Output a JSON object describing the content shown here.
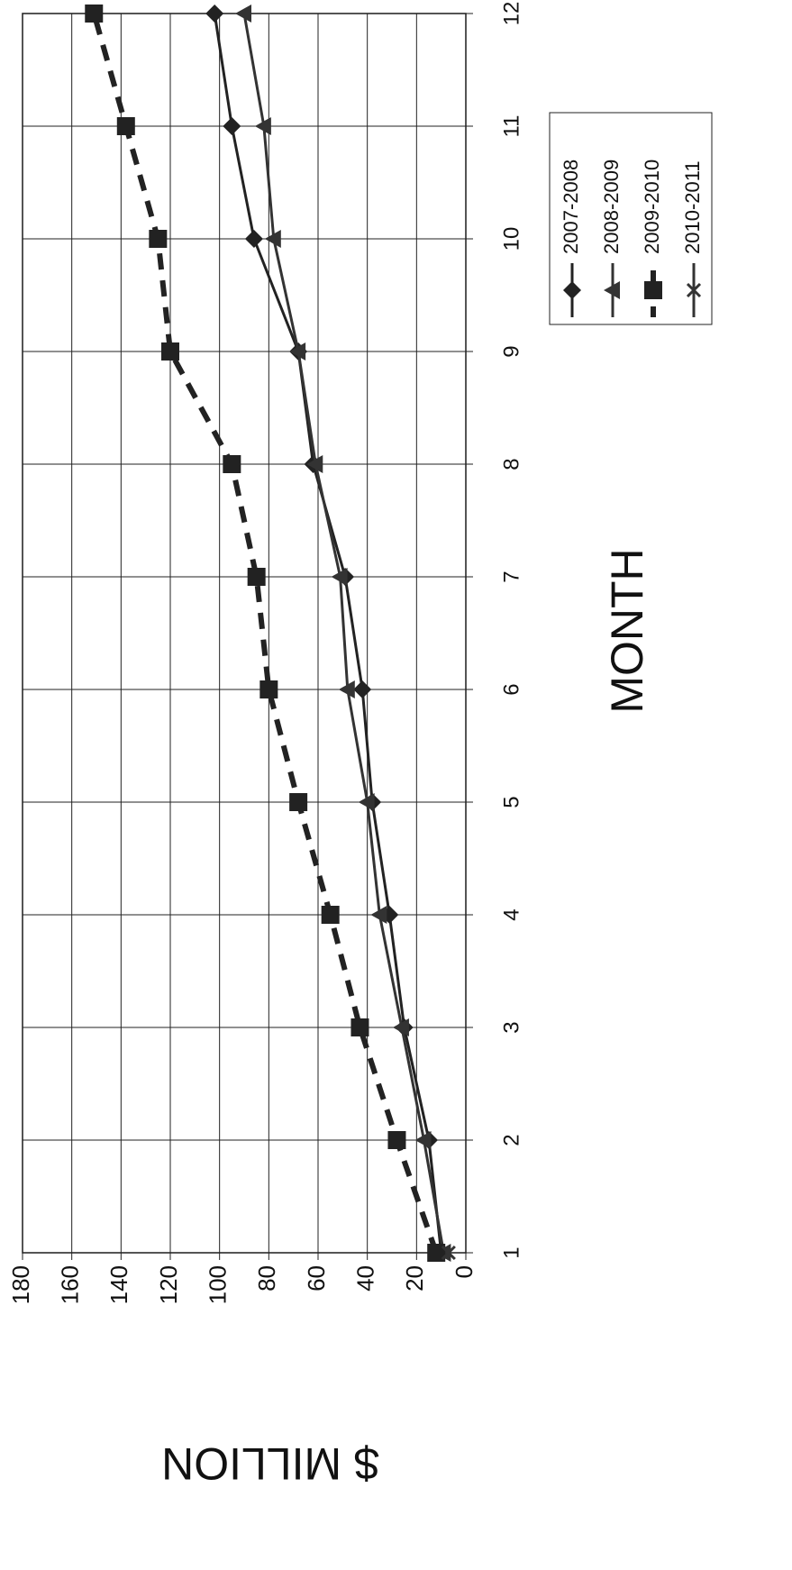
{
  "chart_data": {
    "type": "line",
    "x_label": "MONTH",
    "y_label": "$ MILLION",
    "x": [
      1,
      2,
      3,
      4,
      5,
      6,
      7,
      8,
      9,
      10,
      11,
      12
    ],
    "xlim": [
      1,
      12
    ],
    "xticks": [
      1,
      2,
      3,
      4,
      5,
      6,
      7,
      8,
      9,
      10,
      11,
      12
    ],
    "ylim": [
      0,
      180
    ],
    "yticks": [
      0,
      20,
      40,
      60,
      80,
      100,
      120,
      140,
      160,
      180
    ],
    "grid": true,
    "series": [
      {
        "name": "2007-2008",
        "color": "#222222",
        "marker": "diamond",
        "dashed": false,
        "values": [
          10,
          15,
          25,
          31,
          38,
          42,
          49,
          62,
          68,
          86,
          95,
          102
        ]
      },
      {
        "name": "2008-2009",
        "color": "#333333",
        "marker": "triangle",
        "dashed": false,
        "values": [
          9,
          17,
          26,
          35,
          40,
          48,
          51,
          61,
          68,
          78,
          82,
          90
        ]
      },
      {
        "name": "2009-2010",
        "color": "#222222",
        "marker": "square",
        "dashed": true,
        "values": [
          12,
          28,
          43,
          55,
          68,
          80,
          85,
          95,
          120,
          125,
          138,
          151
        ]
      },
      {
        "name": "2010-2011",
        "color": "#333333",
        "marker": "x",
        "dashed": false,
        "values": [
          7,
          null,
          null,
          null,
          null,
          null,
          null,
          null,
          null,
          null,
          null,
          null
        ]
      }
    ]
  }
}
